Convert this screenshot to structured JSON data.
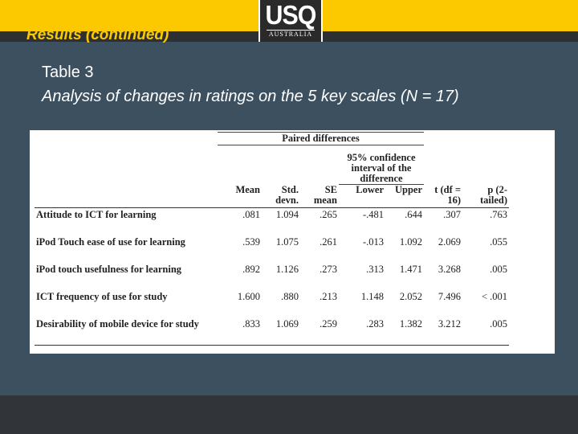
{
  "slide": {
    "title": "Results (continued)",
    "logo": {
      "main": "USQ",
      "sub": "AUSTRALIA"
    },
    "table_label": "Table 3",
    "table_title": "Analysis of changes in ratings on the 5 key scales (N = 17)"
  },
  "table": {
    "group_header": "Paired differences",
    "ci_header": "95% confidence interval of the difference",
    "columns": [
      "Mean",
      "Std. devn.",
      "SE mean",
      "Lower",
      "Upper",
      "t (df = 16)",
      "p (2-tailed)"
    ],
    "rows": [
      {
        "label": "Attitude to ICT for learning",
        "values": [
          ".081",
          "1.094",
          ".265",
          "-.481",
          ".644",
          ".307",
          ".763"
        ]
      },
      {
        "label": "iPod Touch ease of use for learning",
        "values": [
          ".539",
          "1.075",
          ".261",
          "-.013",
          "1.092",
          "2.069",
          ".055"
        ]
      },
      {
        "label": "iPod touch usefulness for learning",
        "values": [
          ".892",
          "1.126",
          ".273",
          ".313",
          "1.471",
          "3.268",
          ".005"
        ]
      },
      {
        "label": "ICT frequency of use for study",
        "values": [
          "1.600",
          ".880",
          ".213",
          "1.148",
          "2.052",
          "7.496",
          "< .001"
        ]
      },
      {
        "label": "Desirability of mobile device for study",
        "values": [
          ".833",
          "1.069",
          ".259",
          ".283",
          "1.382",
          "3.212",
          ".005"
        ]
      }
    ]
  }
}
